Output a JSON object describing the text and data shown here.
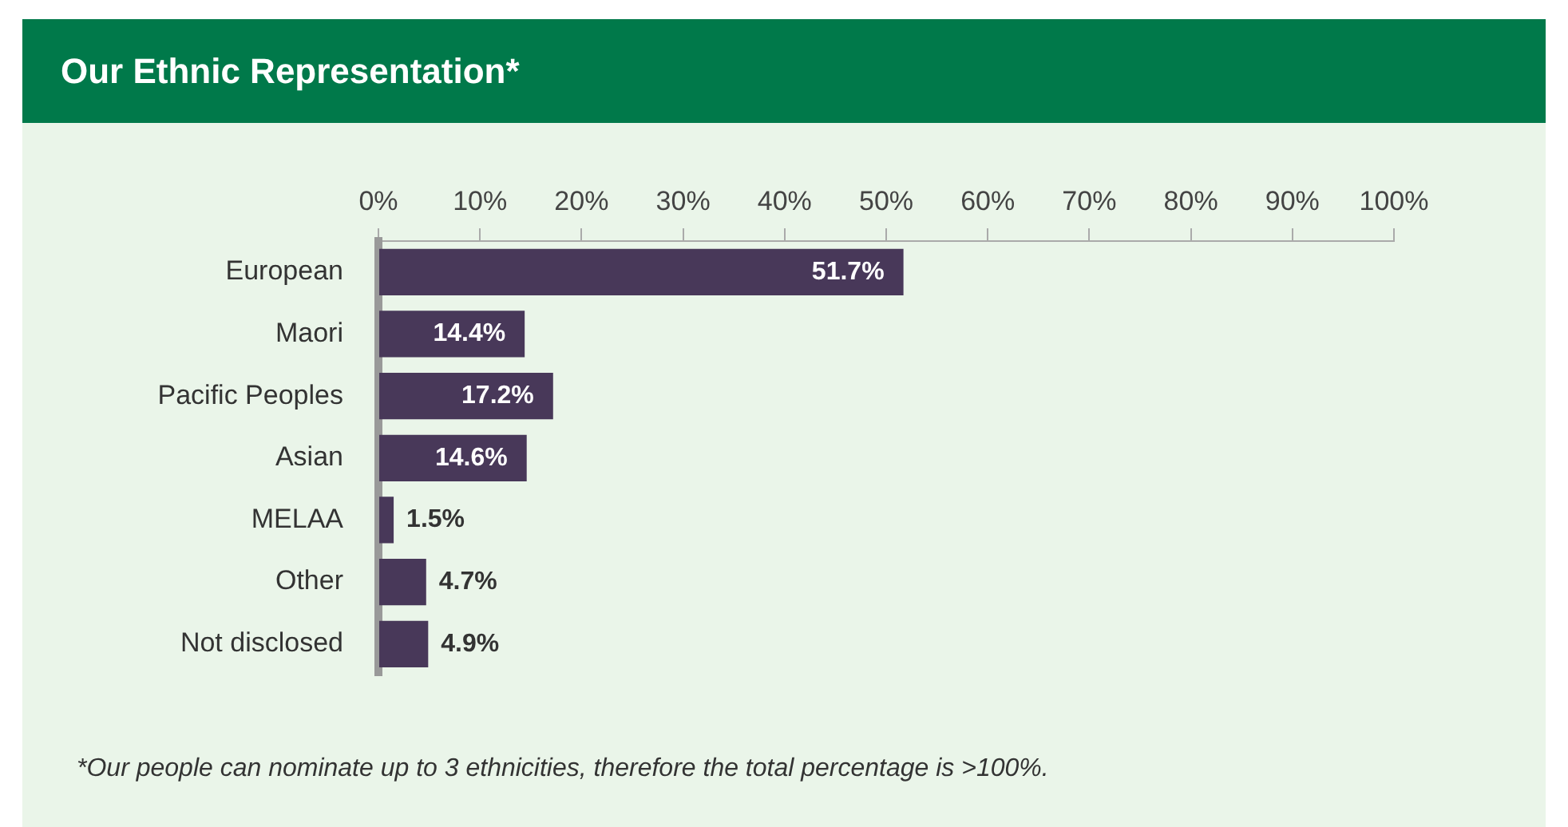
{
  "chart_data": {
    "type": "bar",
    "orientation": "horizontal",
    "title": "Our Ethnic Representation*",
    "categories": [
      "European",
      "Maori",
      "Pacific Peoples",
      "Asian",
      "MELAA",
      "Other",
      "Not disclosed"
    ],
    "values": [
      51.7,
      14.4,
      17.2,
      14.6,
      1.5,
      4.7,
      4.9
    ],
    "value_labels": [
      "51.7%",
      "14.4%",
      "17.2%",
      "14.6%",
      "1.5%",
      "4.7%",
      "4.9%"
    ],
    "color": "#483859",
    "xlim": [
      0,
      100
    ],
    "xticks": [
      {
        "value": 0,
        "label": "0%"
      },
      {
        "value": 10,
        "label": "10%"
      },
      {
        "value": 20,
        "label": "20%"
      },
      {
        "value": 30,
        "label": "30%"
      },
      {
        "value": 40,
        "label": "40%"
      },
      {
        "value": 50,
        "label": "50%"
      },
      {
        "value": 60,
        "label": "60%"
      },
      {
        "value": 70,
        "label": "70%"
      },
      {
        "value": 80,
        "label": "80%"
      },
      {
        "value": 90,
        "label": "90%"
      },
      {
        "value": 100,
        "label": "100%"
      }
    ],
    "grid": false,
    "legend": false,
    "annotations": [
      "*Our people can nominate up to 3 ethnicities, therefore the total percentage is >100%."
    ]
  }
}
